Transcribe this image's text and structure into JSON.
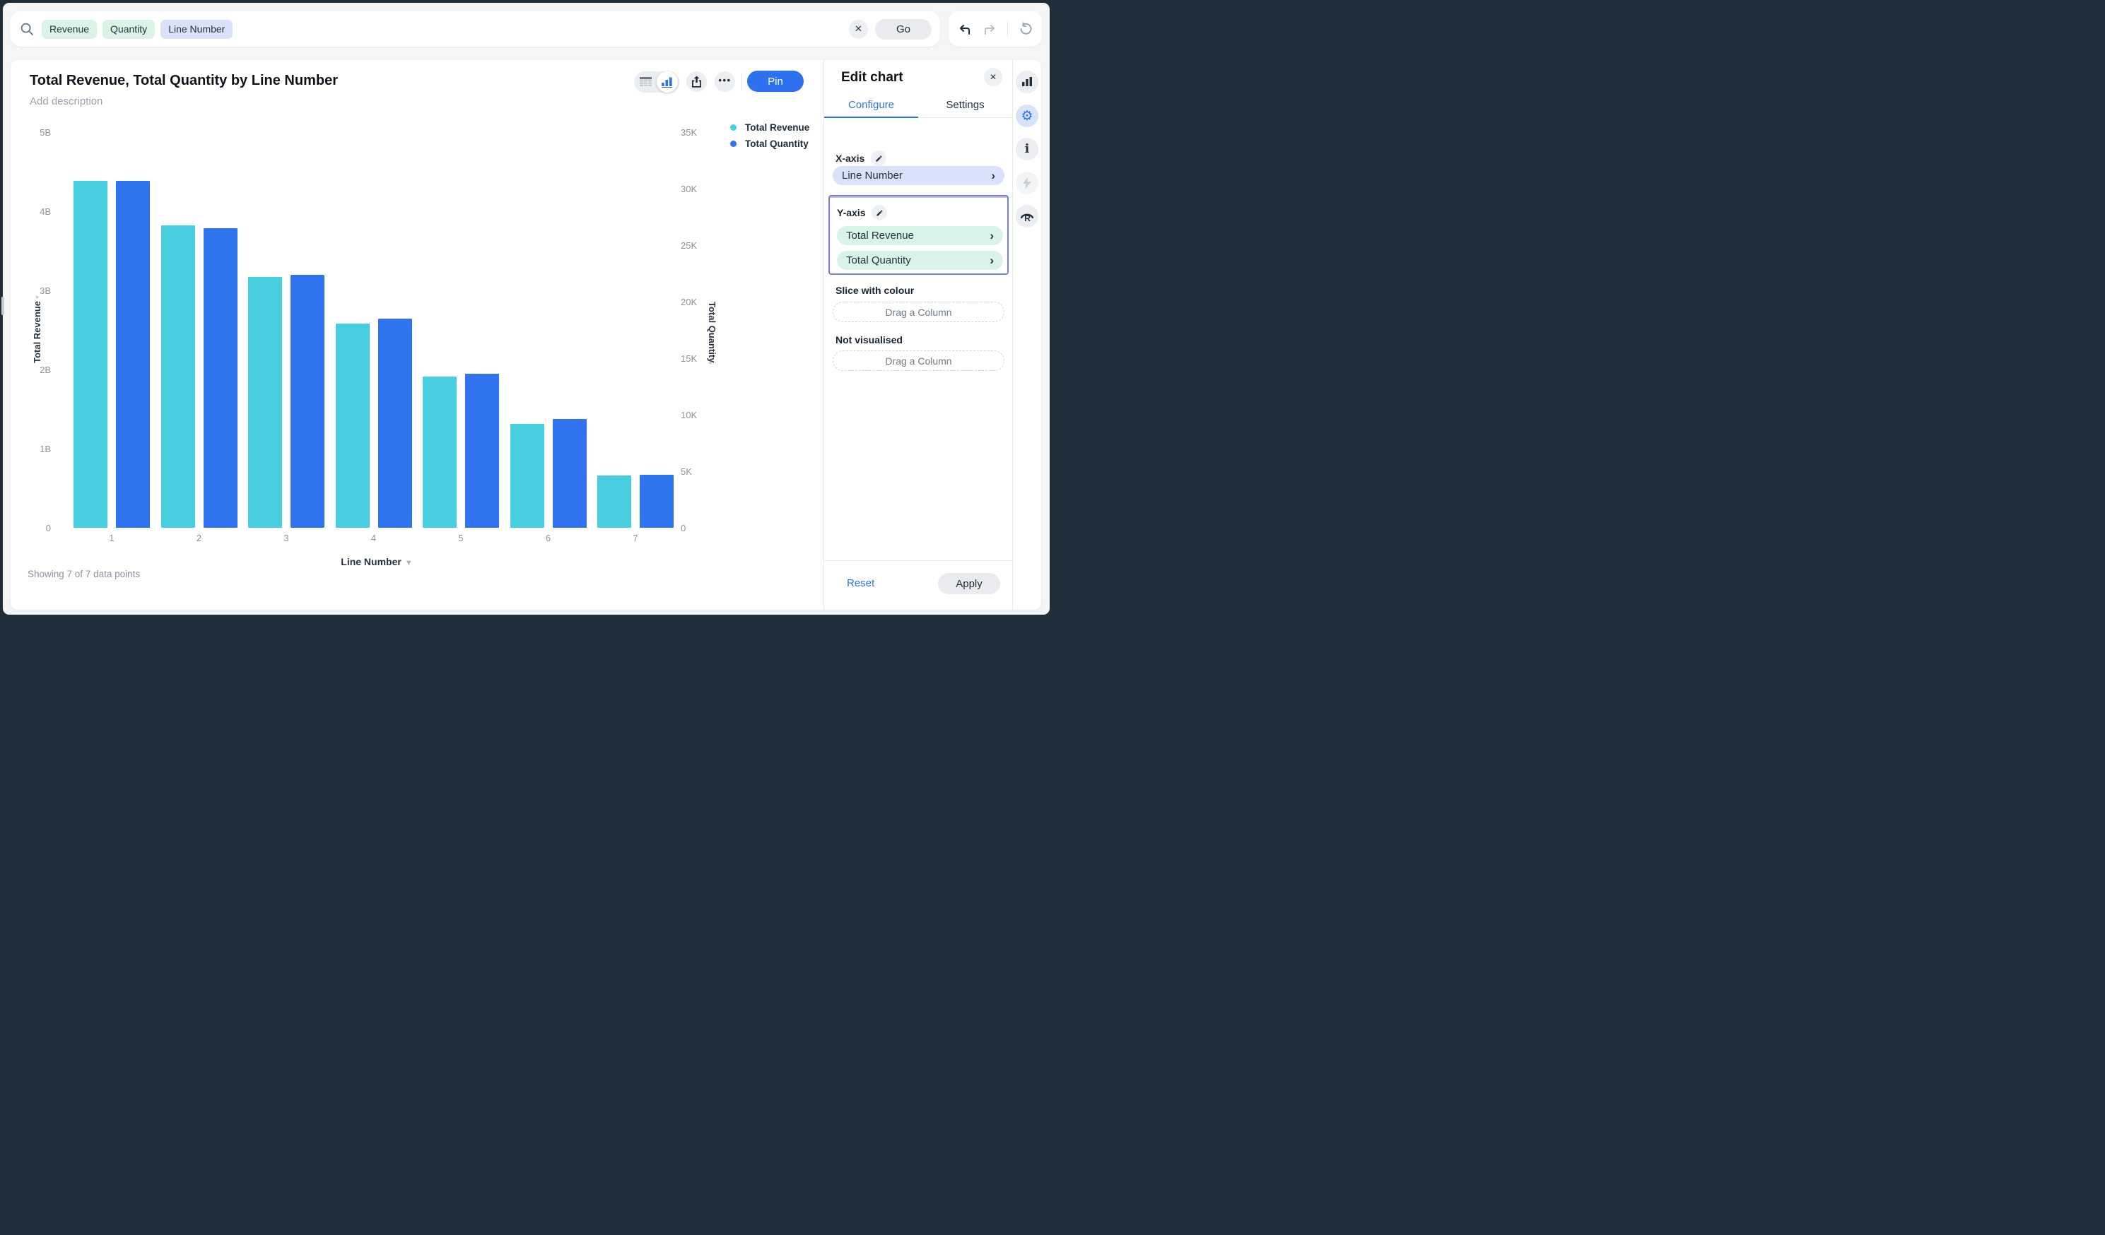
{
  "search_bar": {
    "tags": [
      {
        "label": "Revenue",
        "type": "measure"
      },
      {
        "label": "Quantity",
        "type": "measure"
      },
      {
        "label": "Line Number",
        "type": "dimension"
      }
    ],
    "clear_label": "✕",
    "go_label": "Go"
  },
  "nav": {
    "undo_icon": "undo-arrow",
    "redo_icon": "redo-arrow",
    "refresh_icon": "reset-circular-arrow"
  },
  "chart_header": {
    "title": "Total Revenue, Total Quantity by Line Number",
    "description_placeholder": "Add description",
    "pin_label": "Pin",
    "more_label": "•••"
  },
  "chart_data": {
    "type": "bar",
    "title": "Total Revenue, Total Quantity by Line Number",
    "categories": [
      "1",
      "2",
      "3",
      "4",
      "5",
      "6",
      "7"
    ],
    "series": [
      {
        "name": "Total Revenue",
        "axis": "left",
        "color": "#47CFE0",
        "unit": "B",
        "values": [
          4.38,
          3.82,
          3.17,
          2.58,
          1.91,
          1.31,
          0.66
        ]
      },
      {
        "name": "Total Quantity",
        "axis": "right",
        "color": "#2F74EE",
        "unit": "",
        "values": [
          30700,
          26500,
          22400,
          18500,
          13600,
          9600,
          4700
        ]
      }
    ],
    "left_axis": {
      "label": "Total Revenue",
      "ticks": [
        "5B",
        "4B",
        "3B",
        "2B",
        "1B",
        "0"
      ],
      "max": 5,
      "min": 0
    },
    "right_axis": {
      "label": "Total Quantity",
      "ticks": [
        "35K",
        "30K",
        "25K",
        "20K",
        "15K",
        "10K",
        "5K",
        "0"
      ],
      "max": 35000,
      "min": 0
    },
    "xlabel": "Line Number",
    "grid": false,
    "legend_position": "top-right"
  },
  "legend": [
    {
      "label": "Total Revenue",
      "color": "#47CFE0"
    },
    {
      "label": "Total Quantity",
      "color": "#2F74EE"
    }
  ],
  "chart_footer": {
    "status": "Showing 7 of 7 data points"
  },
  "edit_panel": {
    "title": "Edit chart",
    "close_label": "✕",
    "tabs": [
      {
        "label": "Configure",
        "active": true
      },
      {
        "label": "Settings",
        "active": false
      }
    ],
    "x_axis": {
      "label": "X-axis",
      "fields": [
        {
          "name": "Line Number"
        }
      ]
    },
    "y_axis": {
      "label": "Y-axis",
      "highlighted": true,
      "fields": [
        {
          "name": "Total Revenue"
        },
        {
          "name": "Total Quantity"
        }
      ]
    },
    "slice": {
      "label": "Slice with colour",
      "placeholder": "Drag a Column"
    },
    "not_visualised": {
      "label": "Not visualised",
      "placeholder": "Drag a Column"
    },
    "reset_label": "Reset",
    "apply_label": "Apply"
  },
  "right_toolbar": [
    {
      "icon": "bar-chart-icon",
      "active": false
    },
    {
      "icon": "settings-gear-icon",
      "active": true
    },
    {
      "icon": "info-icon",
      "active": false
    },
    {
      "icon": "lightning-icon",
      "active": false,
      "disabled": true
    },
    {
      "icon": "r-logo-icon",
      "active": false
    }
  ],
  "colors": {
    "accent_blue": "#2D71F0",
    "bar_cyan": "#47CFE0",
    "bar_blue": "#2F74EE",
    "mint_pill": "#D8F3E7",
    "lavender_pill": "#DAE1FA",
    "highlight_border": "#7A7FE7",
    "frame": "#1F2D39"
  }
}
